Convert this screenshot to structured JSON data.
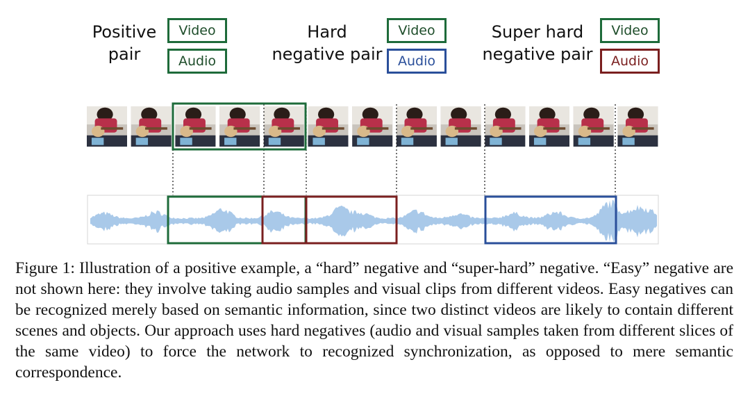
{
  "legend": {
    "positive": {
      "title": "Positive pair",
      "video": "Video",
      "audio": "Audio"
    },
    "hard": {
      "title": "Hard negative pair",
      "video": "Video",
      "audio": "Audio"
    },
    "super_hard": {
      "title": "Super hard negative pair",
      "video": "Video",
      "audio": "Audio"
    }
  },
  "colors": {
    "positive": "#1e6b3a",
    "hard": "#2a4f9a",
    "super_hard": "#7a1f1f",
    "waveform": "#a9c9e9"
  },
  "filmstrip": {
    "frame_count": 13,
    "frame_icon": "guitar-player-frame"
  },
  "caption": "Figure 1: Illustration of a positive example, a “hard” negative and “super-hard” negative. “Easy” negative are not shown here: they involve taking audio samples and visual clips from different videos. Easy negatives can be recognized merely based on semantic information, since two distinct videos are likely to contain different scenes and objects. Our approach uses hard negatives (audio and visual samples taken from different slices of the same video) to force the network to recognized synchronization, as opposed to mere semantic correspondence."
}
